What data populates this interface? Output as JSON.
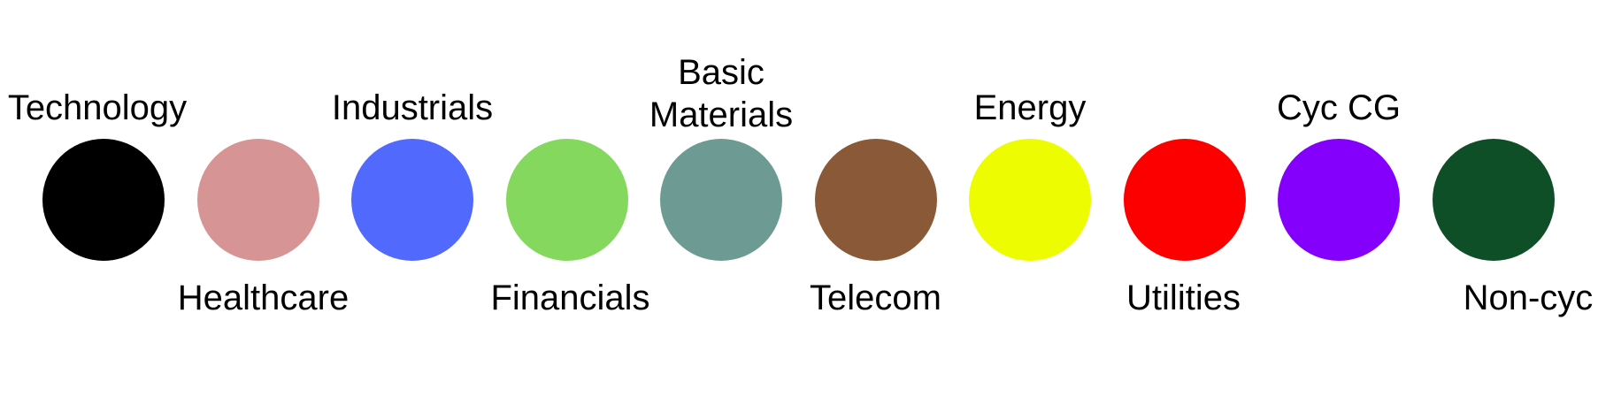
{
  "legend": {
    "items": [
      {
        "label": "Technology",
        "color": "#000000",
        "label_position": "above"
      },
      {
        "label": "Healthcare",
        "color": "#d69494",
        "label_position": "below"
      },
      {
        "label": "Industrials",
        "color": "#5169fc",
        "label_position": "above"
      },
      {
        "label": "Financials",
        "color": "#85d85e",
        "label_position": "below"
      },
      {
        "label": "Basic Materials",
        "color": "#6d9b94",
        "label_position": "above"
      },
      {
        "label": "Telecom",
        "color": "#8a5a38",
        "label_position": "below"
      },
      {
        "label": "Energy",
        "color": "#eefc00",
        "label_position": "above"
      },
      {
        "label": "Utilities",
        "color": "#fc0000",
        "label_position": "below"
      },
      {
        "label": "Cyc CG",
        "color": "#8500fc",
        "label_position": "above"
      },
      {
        "label": "Non-cyc CG",
        "color": "#0f4f28",
        "label_position": "below"
      }
    ]
  }
}
